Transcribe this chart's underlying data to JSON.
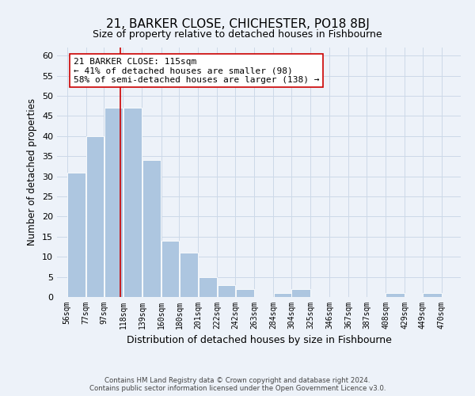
{
  "title": "21, BARKER CLOSE, CHICHESTER, PO18 8BJ",
  "subtitle": "Size of property relative to detached houses in Fishbourne",
  "xlabel": "Distribution of detached houses by size in Fishbourne",
  "ylabel": "Number of detached properties",
  "bar_left_edges": [
    56,
    77,
    97,
    118,
    139,
    160,
    180,
    201,
    222,
    242,
    263,
    284,
    304,
    325,
    346,
    367,
    387,
    408,
    429,
    449
  ],
  "bar_heights": [
    31,
    40,
    47,
    47,
    34,
    14,
    11,
    5,
    3,
    2,
    0,
    1,
    2,
    0,
    0,
    0,
    0,
    1,
    0,
    1
  ],
  "bar_widths": [
    21,
    20,
    21,
    21,
    21,
    20,
    21,
    21,
    20,
    21,
    21,
    20,
    21,
    21,
    21,
    20,
    21,
    21,
    20,
    21
  ],
  "bar_color": "#adc6e0",
  "tick_labels": [
    "56sqm",
    "77sqm",
    "97sqm",
    "118sqm",
    "139sqm",
    "160sqm",
    "180sqm",
    "201sqm",
    "222sqm",
    "242sqm",
    "263sqm",
    "284sqm",
    "304sqm",
    "325sqm",
    "346sqm",
    "367sqm",
    "387sqm",
    "408sqm",
    "429sqm",
    "449sqm",
    "470sqm"
  ],
  "tick_positions": [
    56,
    77,
    97,
    118,
    139,
    160,
    180,
    201,
    222,
    242,
    263,
    284,
    304,
    325,
    346,
    367,
    387,
    408,
    429,
    449,
    470
  ],
  "ylim": [
    0,
    62
  ],
  "xlim": [
    45,
    491
  ],
  "vline_x": 115,
  "vline_color": "#cc0000",
  "annotation_line1": "21 BARKER CLOSE: 115sqm",
  "annotation_line2": "← 41% of detached houses are smaller (98)",
  "annotation_line3": "58% of semi-detached houses are larger (138) →",
  "grid_color": "#ccd9e8",
  "background_color": "#edf2f9",
  "footer_text": "Contains HM Land Registry data © Crown copyright and database right 2024.\nContains public sector information licensed under the Open Government Licence v3.0.",
  "yticks": [
    0,
    5,
    10,
    15,
    20,
    25,
    30,
    35,
    40,
    45,
    50,
    55,
    60
  ]
}
